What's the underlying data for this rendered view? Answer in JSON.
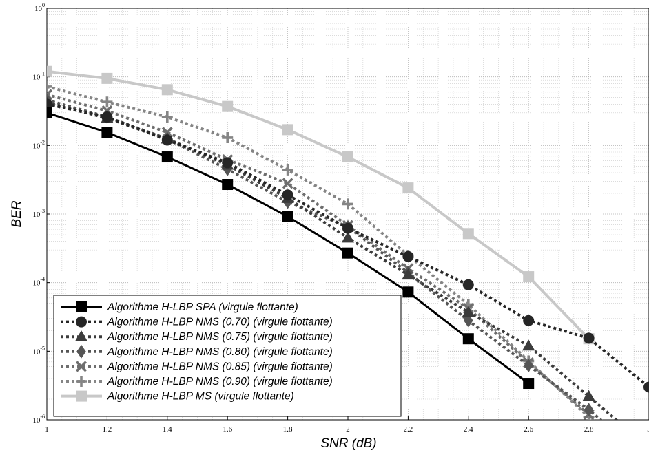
{
  "chart_data": {
    "type": "line",
    "xlabel": "SNR (dB)",
    "ylabel": "BER",
    "yscale": "log",
    "xlim": [
      1,
      3
    ],
    "ylim": [
      1e-06,
      1
    ],
    "x_ticks": [
      "1",
      "1.2",
      "1.4",
      "1.6",
      "1.8",
      "2",
      "2.2",
      "2.4",
      "2.6",
      "2.8",
      "3"
    ],
    "y_ticks": [
      {
        "base": "10",
        "exp": "0"
      },
      {
        "base": "10",
        "exp": "-1"
      },
      {
        "base": "10",
        "exp": "-2"
      },
      {
        "base": "10",
        "exp": "-3"
      },
      {
        "base": "10",
        "exp": "-4"
      },
      {
        "base": "10",
        "exp": "-5"
      },
      {
        "base": "10",
        "exp": "-6"
      }
    ],
    "grid": true,
    "legend_position": "bottom-left",
    "series": [
      {
        "name": "Algorithme H-LBP SPA (virgule flottante)",
        "color": "#000000",
        "dash": "solid",
        "marker": "square",
        "x": [
          1,
          1.2,
          1.4,
          1.6,
          1.8,
          2,
          2.2,
          2.4,
          2.6
        ],
        "y": [
          0.03,
          0.0155,
          0.0068,
          0.0027,
          0.00092,
          0.00027,
          7.3e-05,
          1.52e-05,
          3.4e-06
        ]
      },
      {
        "name": "Algorithme H-LBP NMS (0.70) (virgule flottante)",
        "color": "#262626",
        "dash": "dotted",
        "marker": "circle",
        "x": [
          1,
          1.2,
          1.4,
          1.6,
          1.8,
          2,
          2.2,
          2.4,
          2.6,
          2.8,
          3
        ],
        "y": [
          0.04,
          0.026,
          0.012,
          0.0056,
          0.0019,
          0.00062,
          0.00024,
          9.3e-05,
          2.8e-05,
          1.55e-05,
          3e-06
        ]
      },
      {
        "name": "Algorithme H-LBP NMS (0.75) (virgule flottante)",
        "color": "#3c3c3c",
        "dash": "dotted",
        "marker": "triangle",
        "x": [
          1,
          1.2,
          1.4,
          1.6,
          1.8,
          2,
          2.2,
          2.4,
          2.6,
          2.8,
          2.95
        ],
        "y": [
          0.042,
          0.025,
          0.0125,
          0.0052,
          0.0017,
          0.00045,
          0.00013,
          3.7e-05,
          1.2e-05,
          2.2e-06,
          6e-07
        ]
      },
      {
        "name": "Algorithme H-LBP NMS (0.80) (virgule flottante)",
        "color": "#555555",
        "dash": "dotted",
        "marker": "diamond",
        "x": [
          1,
          1.2,
          1.4,
          1.6,
          1.8,
          2,
          2.2,
          2.4,
          2.6,
          2.8,
          2.9
        ],
        "y": [
          0.046,
          0.026,
          0.0125,
          0.0045,
          0.0015,
          0.00065,
          0.00014,
          2.8e-05,
          6.2e-06,
          1.4e-06,
          6e-07
        ]
      },
      {
        "name": "Algorithme H-LBP NMS (0.85) (virgule flottante)",
        "color": "#6e6e6e",
        "dash": "dotted",
        "marker": "x",
        "x": [
          1,
          1.2,
          1.4,
          1.6,
          1.8,
          2,
          2.2,
          2.4,
          2.6,
          2.8,
          2.85
        ],
        "y": [
          0.055,
          0.032,
          0.0155,
          0.0062,
          0.0028,
          0.00068,
          0.00016,
          4.2e-05,
          6.8e-06,
          1.2e-06,
          6e-07
        ]
      },
      {
        "name": "Algorithme H-LBP NMS (0.90) (virgule flottante)",
        "color": "#858585",
        "dash": "dotted",
        "marker": "plus",
        "x": [
          1,
          1.2,
          1.4,
          1.6,
          1.8,
          2,
          2.2,
          2.4,
          2.6,
          2.8,
          2.85
        ],
        "y": [
          0.072,
          0.043,
          0.026,
          0.013,
          0.0044,
          0.0014,
          0.00025,
          4.8e-05,
          7.2e-06,
          1.1e-06,
          6e-07
        ]
      },
      {
        "name": "Algorithme H-LBP MS (virgule flottante)",
        "color": "#c8c8c8",
        "dash": "solid",
        "marker": "square",
        "x": [
          1,
          1.2,
          1.4,
          1.6,
          1.8,
          2,
          2.2,
          2.4,
          2.6,
          2.8
        ],
        "y": [
          0.12,
          0.095,
          0.065,
          0.037,
          0.017,
          0.0068,
          0.0024,
          0.00052,
          0.000122,
          1.52e-05
        ]
      }
    ]
  }
}
